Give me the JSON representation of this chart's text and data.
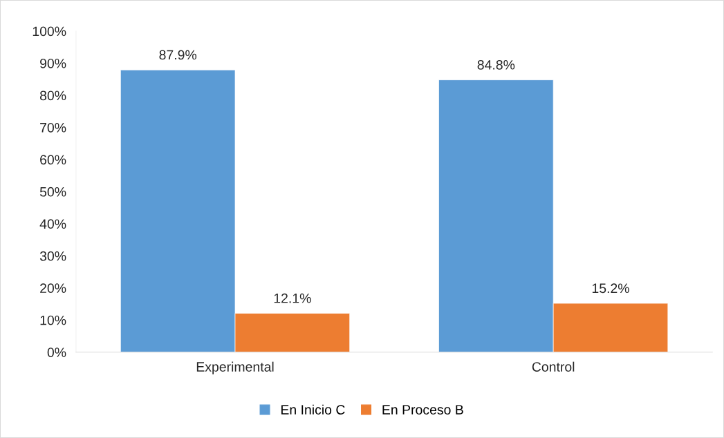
{
  "chart_data": {
    "type": "bar",
    "categories": [
      "Experimental",
      "Control"
    ],
    "series": [
      {
        "name": "En Inicio C",
        "color": "#5b9bd5",
        "values": [
          87.9,
          84.8
        ],
        "value_labels": [
          "87.9%",
          "84.8%"
        ]
      },
      {
        "name": "En Proceso B",
        "color": "#ed7d31",
        "values": [
          12.1,
          15.2
        ],
        "value_labels": [
          "12.1%",
          "15.2%"
        ]
      }
    ],
    "ylim": [
      0,
      100
    ],
    "yticks": [
      {
        "value": 0,
        "label": "0%"
      },
      {
        "value": 10,
        "label": "10%"
      },
      {
        "value": 20,
        "label": "20%"
      },
      {
        "value": 30,
        "label": "30%"
      },
      {
        "value": 40,
        "label": "40%"
      },
      {
        "value": 50,
        "label": "50%"
      },
      {
        "value": 60,
        "label": "60%"
      },
      {
        "value": 70,
        "label": "70%"
      },
      {
        "value": 80,
        "label": "80%"
      },
      {
        "value": 90,
        "label": "90%"
      },
      {
        "value": 100,
        "label": "100%"
      }
    ],
    "grid": false,
    "legend": "bottom"
  }
}
